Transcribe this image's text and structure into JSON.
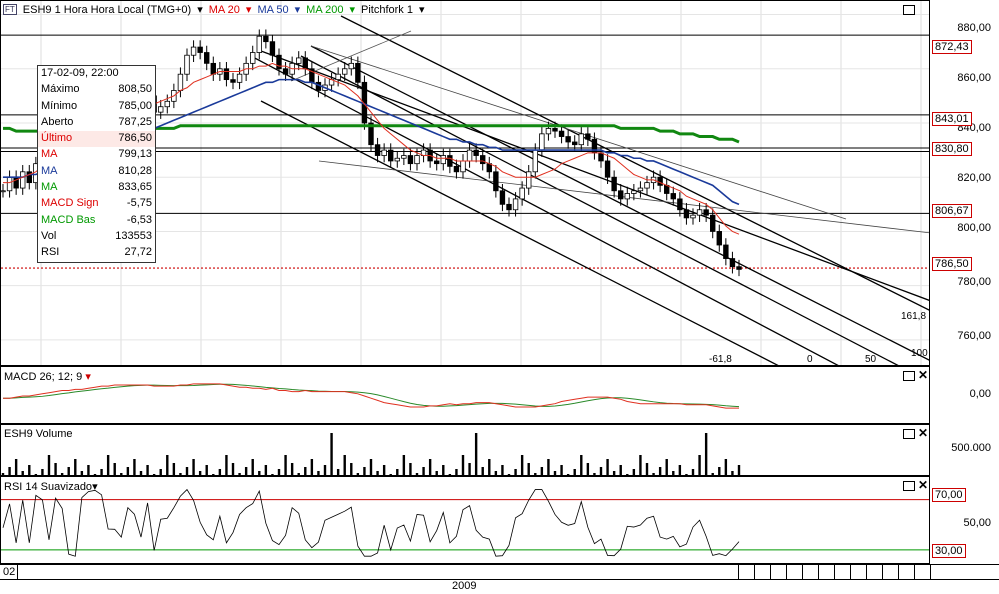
{
  "header": {
    "symbol_label": "ESH9 1 Hora Hora Local (TMG+0)",
    "ma20_label": "MA 20",
    "ma50_label": "MA 50",
    "ma200_label": "MA 200",
    "pitchfork_label": "Pitchfork 1"
  },
  "price_axis": {
    "ticks": [
      "880,00",
      "860,00",
      "840,00",
      "820,00",
      "800,00",
      "780,00",
      "760,00"
    ]
  },
  "price_tags": {
    "t1": "872,43",
    "t2": "843,01",
    "t3": "830,80",
    "t4": "806,67",
    "t5": "786,50"
  },
  "fibo_labels": {
    "a": "161,8",
    "b": "100",
    "c": "-61,8",
    "d": "0",
    "e": "50"
  },
  "infobox": {
    "rows": [
      {
        "label": "17-02-09, 22:00",
        "value": ""
      },
      {
        "label": "Máximo",
        "value": "808,50"
      },
      {
        "label": "Mínimo",
        "value": "785,00"
      },
      {
        "label": "Aberto",
        "value": "787,25"
      },
      {
        "label": "Último",
        "value": "786,50"
      },
      {
        "label": "MA",
        "value": "799,13"
      },
      {
        "label": "MA",
        "value": "810,28"
      },
      {
        "label": "MA",
        "value": "833,65"
      },
      {
        "label": "MACD Sign",
        "value": "-5,75"
      },
      {
        "label": "MACD Bas",
        "value": "-6,53"
      },
      {
        "label": "Vol",
        "value": "133553"
      },
      {
        "label": "RSI",
        "value": "27,72"
      }
    ]
  },
  "macd_panel": {
    "title": "MACD 26; 12; 9",
    "tick": "0,00"
  },
  "volume_panel": {
    "title": "ESH9 Volume",
    "tick": "500.000"
  },
  "rsi_panel": {
    "title": "RSI 14 Suavizado",
    "ticks": [
      "70,00",
      "50,00",
      "30,00"
    ]
  },
  "time_axis": {
    "left_label": "02",
    "year_label": "2009"
  },
  "colors": {
    "ma20": "#e03020",
    "ma50": "#1a3a9a",
    "ma200": "#118811",
    "accent_red": "#cc0000"
  },
  "chart_data": {
    "type": "candlestick",
    "title": "ESH9 1 Hora Hora Local (TMG+0)",
    "ylim": [
      750,
      885
    ],
    "close": [
      815,
      820,
      816,
      822,
      818,
      825,
      830,
      826,
      832,
      835,
      828,
      822,
      830,
      838,
      845,
      850,
      847,
      845,
      842,
      846,
      848,
      845,
      850,
      844,
      846,
      848,
      852,
      858,
      865,
      868,
      866,
      862,
      858,
      860,
      856,
      855,
      858,
      862,
      866,
      872,
      870,
      865,
      860,
      858,
      862,
      864,
      860,
      855,
      852,
      854,
      856,
      858,
      860,
      862,
      855,
      840,
      832,
      828,
      830,
      826,
      827,
      828,
      825,
      828,
      830,
      826,
      825,
      828,
      824,
      822,
      826,
      830,
      828,
      825,
      822,
      815,
      810,
      808,
      812,
      816,
      822,
      830,
      836,
      838,
      837,
      835,
      833,
      832,
      836,
      834,
      829,
      826,
      820,
      815,
      812,
      814,
      815,
      816,
      818,
      820,
      817,
      814,
      812,
      808,
      805,
      806,
      808,
      806,
      800,
      795,
      790,
      787,
      786
    ],
    "ma20": [
      818,
      818,
      819,
      820,
      821,
      822,
      824,
      826,
      828,
      830,
      831,
      832,
      833,
      835,
      837,
      839,
      840,
      842,
      843,
      844,
      845,
      846,
      847,
      847,
      848,
      849,
      850,
      852,
      853,
      855,
      856,
      857,
      858,
      859,
      859,
      859,
      859,
      860,
      860,
      861,
      861,
      862,
      861,
      861,
      860,
      860,
      860,
      859,
      858,
      857,
      856,
      855,
      854,
      852,
      850,
      847,
      844,
      841,
      838,
      836,
      834,
      832,
      830,
      829,
      828,
      828,
      827,
      827,
      827,
      826,
      826,
      826,
      826,
      826,
      825,
      824,
      822,
      821,
      820,
      820,
      820,
      820,
      821,
      822,
      823,
      825,
      826,
      827,
      828,
      829,
      829,
      829,
      828,
      827,
      825,
      823,
      821,
      820,
      819,
      819,
      818,
      817,
      816,
      815,
      813,
      812,
      811,
      810,
      808,
      805,
      802,
      800,
      799
    ],
    "ma50": [
      820,
      820,
      820,
      820,
      821,
      821,
      822,
      823,
      824,
      825,
      826,
      826,
      827,
      828,
      829,
      830,
      831,
      832,
      833,
      834,
      835,
      836,
      837,
      838,
      839,
      840,
      841,
      842,
      843,
      844,
      845,
      846,
      847,
      848,
      849,
      850,
      851,
      852,
      853,
      854,
      855,
      855,
      856,
      856,
      856,
      856,
      855,
      855,
      854,
      853,
      852,
      851,
      850,
      849,
      848,
      847,
      846,
      845,
      844,
      843,
      842,
      841,
      840,
      839,
      838,
      837,
      836,
      835,
      834,
      834,
      833,
      833,
      832,
      832,
      831,
      831,
      830,
      830,
      830,
      830,
      830,
      830,
      830,
      830,
      830,
      830,
      830,
      830,
      830,
      830,
      830,
      830,
      829,
      829,
      828,
      828,
      827,
      827,
      826,
      826,
      825,
      824,
      823,
      822,
      821,
      820,
      819,
      818,
      817,
      815,
      813,
      811,
      810
    ],
    "ma200": [
      838,
      838,
      837,
      837,
      837,
      837,
      837,
      837,
      837,
      837,
      837,
      837,
      837,
      838,
      838,
      838,
      838,
      838,
      838,
      838,
      838,
      838,
      838,
      838,
      838,
      838,
      838,
      839,
      839,
      839,
      839,
      839,
      839,
      839,
      839,
      839,
      839,
      839,
      839,
      839,
      839,
      839,
      839,
      839,
      839,
      839,
      839,
      839,
      839,
      839,
      839,
      839,
      839,
      839,
      839,
      839,
      839,
      839,
      839,
      839,
      839,
      839,
      839,
      839,
      839,
      839,
      839,
      839,
      839,
      839,
      839,
      839,
      839,
      839,
      839,
      839,
      839,
      839,
      839,
      839,
      839,
      839,
      839,
      839,
      839,
      839,
      839,
      839,
      839,
      839,
      839,
      839,
      839,
      839,
      838,
      838,
      838,
      838,
      838,
      838,
      837,
      837,
      837,
      836,
      836,
      836,
      835,
      835,
      835,
      834,
      834,
      834,
      833
    ]
  }
}
